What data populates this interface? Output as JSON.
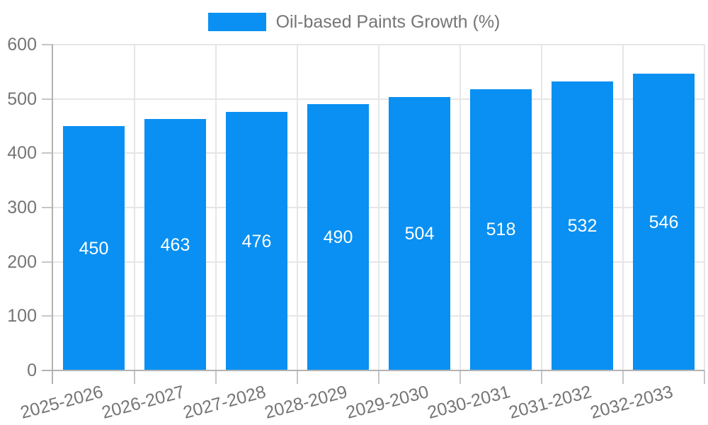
{
  "colors": {
    "bar": "#0990F2",
    "axis": "#b3b3b3",
    "grid": "#e6e6e6",
    "tick": "#c6c6c6",
    "text": "#757575",
    "value_label": "#ffffff",
    "background": "#ffffff"
  },
  "chart_data": {
    "type": "bar",
    "title": "",
    "xlabel": "",
    "ylabel": "",
    "categories": [
      "2025-2026",
      "2026-2027",
      "2027-2028",
      "2028-2029",
      "2029-2030",
      "2030-2031",
      "2031-2032",
      "2032-2033"
    ],
    "values": [
      450,
      463,
      476,
      490,
      504,
      518,
      532,
      546
    ],
    "series": [
      {
        "name": "Oil-based Paints Growth (%)",
        "values": [
          450,
          463,
          476,
          490,
          504,
          518,
          532,
          546
        ]
      }
    ],
    "yticks": [
      0,
      100,
      200,
      300,
      400,
      500,
      600
    ],
    "ylim": [
      0,
      600
    ],
    "grid": true,
    "legend_position": "top",
    "value_labels": "inside-center",
    "x_label_rotation_deg": -15
  }
}
